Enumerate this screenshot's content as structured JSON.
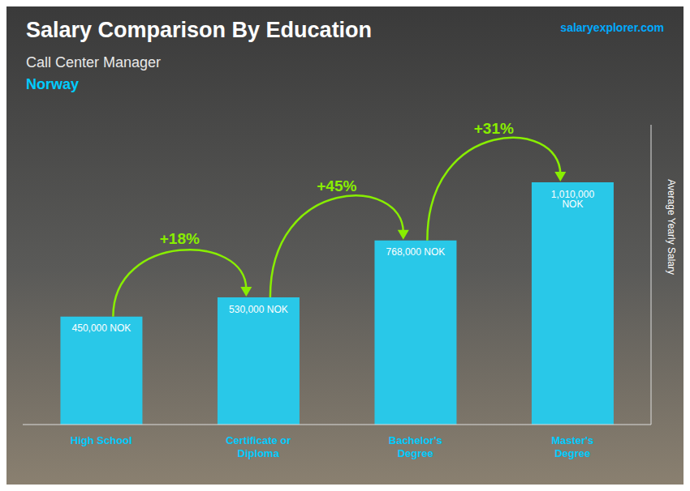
{
  "chart_data": {
    "type": "bar",
    "title": "Salary Comparison By Education",
    "subtitle": "Call Center Manager",
    "annotations": [
      "Norway",
      "salaryexplorer.com",
      "+18%",
      "+45%",
      "+31%"
    ],
    "ylabel": "Average Yearly Salary",
    "categories": [
      "High School",
      "Certificate or\nDiploma",
      "Bachelor's\nDegree",
      "Master's\nDegree"
    ],
    "values": [
      450000,
      530000,
      768000,
      1010000
    ],
    "value_labels": [
      "450,000 NOK",
      "530,000 NOK",
      "768,000 NOK",
      "1,010,000 NOK"
    ],
    "data_labels": true,
    "color": "#29c8e8",
    "ylim": [
      0,
      1250000
    ],
    "grid": false,
    "tick_labels": "x"
  }
}
